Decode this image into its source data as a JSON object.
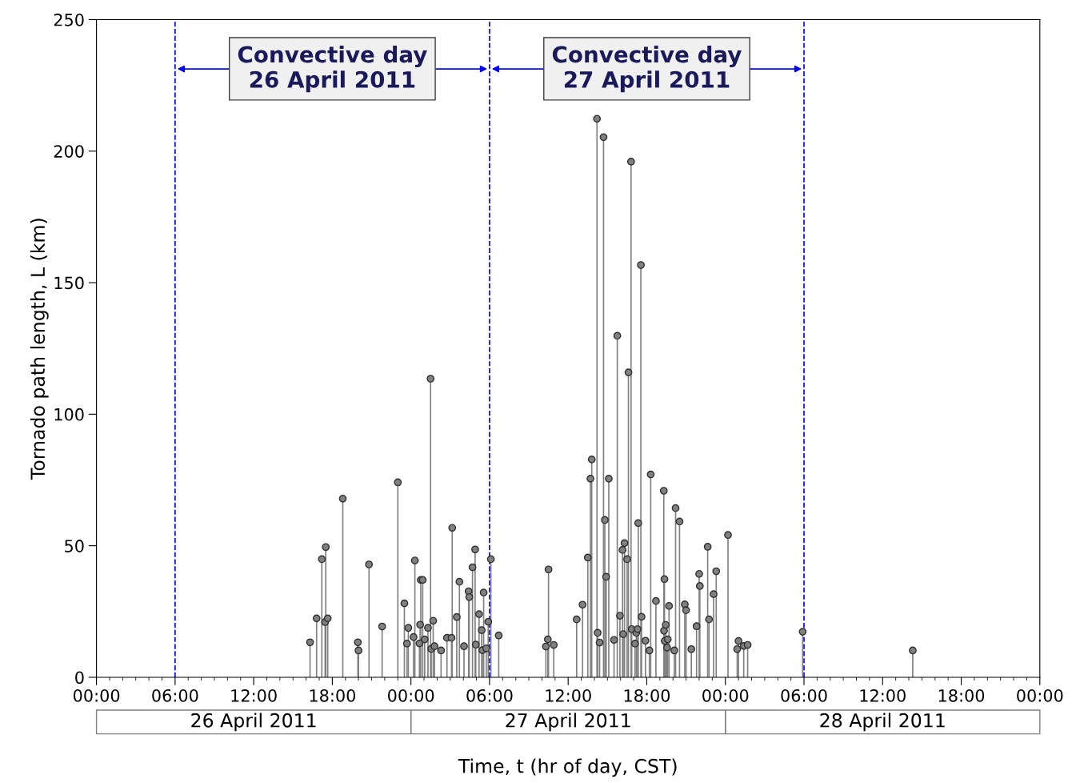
{
  "chart_data": {
    "type": "lollipop",
    "xlabel": "Time, t (hr of day, CST)",
    "ylabel": "Tornado path length, L (km)",
    "xlim": [
      "2011-04-26T00:00",
      "2011-04-29T00:00"
    ],
    "ylim": [
      0,
      250
    ],
    "xticks": [
      {
        "value": "2011-04-26T00:00",
        "label": "00:00"
      },
      {
        "value": "2011-04-26T06:00",
        "label": "06:00"
      },
      {
        "value": "2011-04-26T12:00",
        "label": "12:00"
      },
      {
        "value": "2011-04-26T18:00",
        "label": "18:00"
      },
      {
        "value": "2011-04-27T00:00",
        "label": "00:00"
      },
      {
        "value": "2011-04-27T06:00",
        "label": "06:00"
      },
      {
        "value": "2011-04-27T12:00",
        "label": "12:00"
      },
      {
        "value": "2011-04-27T18:00",
        "label": "18:00"
      },
      {
        "value": "2011-04-28T00:00",
        "label": "00:00"
      },
      {
        "value": "2011-04-28T06:00",
        "label": "06:00"
      },
      {
        "value": "2011-04-28T12:00",
        "label": "12:00"
      },
      {
        "value": "2011-04-28T18:00",
        "label": "18:00"
      },
      {
        "value": "2011-04-29T00:00",
        "label": "00:00"
      }
    ],
    "yticks": [
      0,
      50,
      100,
      150,
      200,
      250
    ],
    "grid": false,
    "marker": "circle",
    "ref_lines": [
      {
        "axis": "x",
        "value": "2011-04-26T06:00",
        "color": "#0000ff",
        "line_style": "dashed"
      },
      {
        "axis": "x",
        "value": "2011-04-27T06:00",
        "color": "#0000ff",
        "line_style": "dashed"
      },
      {
        "axis": "x",
        "value": "2011-04-28T06:00",
        "color": "#0000ff",
        "line_style": "dashed"
      }
    ],
    "annotations": [
      "Convective day\n26 April 2011",
      "Convective day\n27 April 2011",
      "26 April 2011",
      "27 April 2011",
      "28 April 2011"
    ],
    "series": [
      {
        "color": "#808080",
        "x": [
          "2011-04-26T16:18",
          "2011-04-26T16:48",
          "2011-04-26T17:12",
          "2011-04-26T17:27",
          "2011-04-26T17:30",
          "2011-04-26T17:39",
          "2011-04-26T18:48",
          "2011-04-26T19:57",
          "2011-04-26T20:00",
          "2011-04-26T20:48",
          "2011-04-26T21:48",
          "2011-04-26T23:00",
          "2011-04-26T23:30",
          "2011-04-26T23:42",
          "2011-04-26T23:48",
          "2011-04-27T00:12",
          "2011-04-27T00:18",
          "2011-04-27T00:39",
          "2011-04-27T00:42",
          "2011-04-27T00:45",
          "2011-04-27T00:54",
          "2011-04-27T01:03",
          "2011-04-27T01:18",
          "2011-04-27T01:30",
          "2011-04-27T01:33",
          "2011-04-27T01:42",
          "2011-04-27T01:48",
          "2011-04-27T02:18",
          "2011-04-27T02:45",
          "2011-04-27T03:06",
          "2011-04-27T03:09",
          "2011-04-27T03:30",
          "2011-04-27T03:42",
          "2011-04-27T04:03",
          "2011-04-27T04:24",
          "2011-04-27T04:27",
          "2011-04-27T04:42",
          "2011-04-27T04:54",
          "2011-04-27T04:57",
          "2011-04-27T05:12",
          "2011-04-27T05:24",
          "2011-04-27T05:27",
          "2011-04-27T05:33",
          "2011-04-27T05:45",
          "2011-04-27T05:54",
          "2011-04-27T06:06",
          "2011-04-27T06:42",
          "2011-04-27T10:18",
          "2011-04-27T10:27",
          "2011-04-27T10:30",
          "2011-04-27T10:54",
          "2011-04-27T12:39",
          "2011-04-27T13:06",
          "2011-04-27T13:30",
          "2011-04-27T13:42",
          "2011-04-27T13:48",
          "2011-04-27T14:12",
          "2011-04-27T14:15",
          "2011-04-27T14:24",
          "2011-04-27T14:42",
          "2011-04-27T14:48",
          "2011-04-27T14:54",
          "2011-04-27T15:06",
          "2011-04-27T15:30",
          "2011-04-27T15:45",
          "2011-04-27T15:57",
          "2011-04-27T16:09",
          "2011-04-27T16:12",
          "2011-04-27T16:18",
          "2011-04-27T16:30",
          "2011-04-27T16:36",
          "2011-04-27T16:48",
          "2011-04-27T16:51",
          "2011-04-27T17:06",
          "2011-04-27T17:12",
          "2011-04-27T17:18",
          "2011-04-27T17:21",
          "2011-04-27T17:33",
          "2011-04-27T17:36",
          "2011-04-27T17:54",
          "2011-04-27T18:12",
          "2011-04-27T18:18",
          "2011-04-27T18:42",
          "2011-04-27T19:18",
          "2011-04-27T19:19",
          "2011-04-27T19:21",
          "2011-04-27T19:22",
          "2011-04-27T19:27",
          "2011-04-27T19:33",
          "2011-04-27T19:36",
          "2011-04-27T19:42",
          "2011-04-27T20:06",
          "2011-04-27T20:12",
          "2011-04-27T20:30",
          "2011-04-27T20:54",
          "2011-04-27T21:00",
          "2011-04-27T21:24",
          "2011-04-27T21:48",
          "2011-04-27T22:00",
          "2011-04-27T22:03",
          "2011-04-27T22:39",
          "2011-04-27T22:45",
          "2011-04-27T23:06",
          "2011-04-27T23:18",
          "2011-04-28T00:12",
          "2011-04-28T00:54",
          "2011-04-28T01:00",
          "2011-04-28T01:24",
          "2011-04-28T01:42",
          "2011-04-28T05:54",
          "2011-04-28T14:18"
        ],
        "values": [
          13.3,
          22.4,
          44.9,
          21.0,
          49.5,
          22.4,
          67.9,
          13.3,
          10.2,
          42.9,
          19.3,
          74.1,
          28.1,
          12.8,
          18.8,
          15.3,
          44.4,
          12.9,
          20.0,
          37.0,
          37.0,
          14.4,
          18.8,
          113.5,
          10.8,
          21.5,
          11.8,
          10.2,
          15.0,
          15.0,
          56.8,
          22.9,
          36.3,
          11.8,
          32.7,
          30.5,
          41.8,
          48.6,
          12.4,
          24.0,
          17.9,
          10.3,
          32.2,
          11.0,
          21.1,
          44.9,
          15.9,
          11.7,
          14.4,
          41.0,
          12.3,
          22.0,
          27.6,
          45.5,
          75.5,
          82.8,
          212.3,
          16.9,
          13.2,
          205.3,
          59.8,
          38.2,
          75.5,
          14.2,
          129.8,
          23.4,
          48.4,
          16.4,
          51.0,
          44.9,
          115.9,
          196.0,
          18.3,
          12.8,
          16.9,
          18.3,
          58.6,
          156.7,
          23.0,
          13.9,
          10.2,
          77.1,
          29.0,
          70.9,
          17.7,
          37.3,
          13.8,
          19.9,
          11.3,
          14.4,
          27.1,
          10.2,
          64.3,
          59.2,
          27.7,
          25.5,
          10.7,
          19.4,
          39.3,
          34.7,
          49.6,
          22.0,
          31.6,
          40.3,
          54.1,
          10.7,
          13.8,
          11.9,
          12.3,
          17.3,
          10.2
        ]
      }
    ]
  }
}
